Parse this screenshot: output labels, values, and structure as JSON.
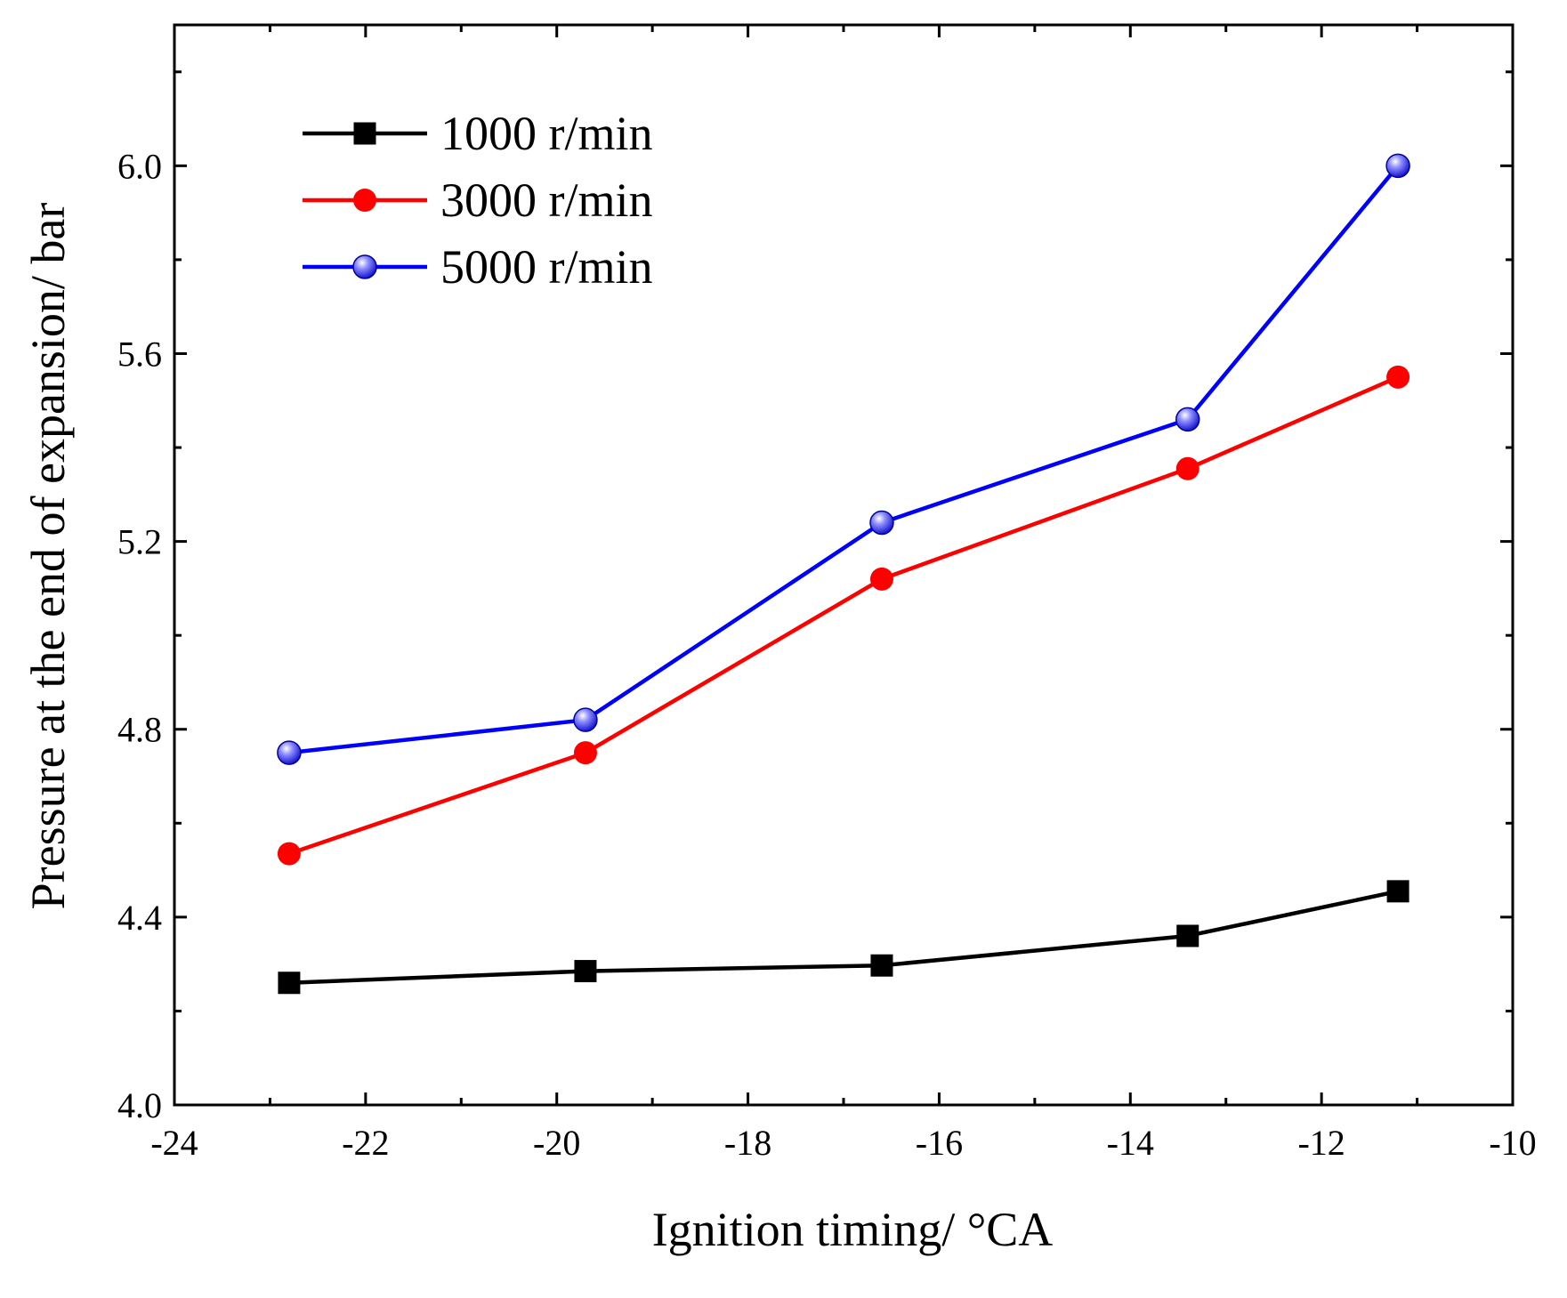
{
  "chart_data": {
    "type": "line",
    "title": "",
    "xlabel": "Ignition timing/ °CA",
    "ylabel": "Pressure at the end of expansion/ bar",
    "xlim": [
      -24,
      -10
    ],
    "ylim": [
      4.0,
      6.3
    ],
    "x_ticks": [
      -24,
      -22,
      -20,
      -18,
      -16,
      -14,
      -12,
      -10
    ],
    "x_tick_labels": [
      "-24",
      "-22",
      "-20",
      "-18",
      "-16",
      "-14",
      "-12",
      "-10"
    ],
    "y_ticks": [
      4.0,
      4.4,
      4.8,
      5.2,
      5.6,
      6.0
    ],
    "y_tick_labels": [
      "4.0",
      "4.4",
      "4.8",
      "5.2",
      "5.6",
      "6.0"
    ],
    "grid": false,
    "legend_position": "top-left",
    "x": [
      -22.8,
      -19.7,
      -16.6,
      -13.4,
      -11.2
    ],
    "series": [
      {
        "name": "1000 r/min",
        "color": "#000000",
        "marker": "square",
        "values": [
          4.26,
          4.285,
          4.297,
          4.36,
          4.455
        ]
      },
      {
        "name": "3000 r/min",
        "color": "#ff0000",
        "marker": "circle",
        "values": [
          4.535,
          4.75,
          5.12,
          5.355,
          5.55
        ]
      },
      {
        "name": "5000 r/min",
        "color": "#0000ff",
        "marker": "sphere",
        "values": [
          4.75,
          4.82,
          5.24,
          5.46,
          6.0
        ]
      }
    ]
  }
}
